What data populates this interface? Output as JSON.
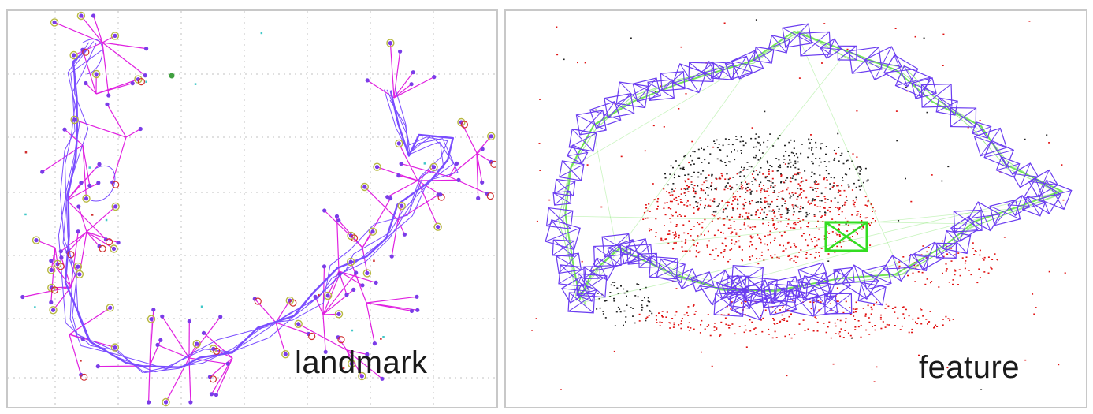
{
  "panels": {
    "left": {
      "caption": "landmark"
    },
    "right": {
      "caption": "feature"
    }
  },
  "colors": {
    "trajectory": "#7a4dff",
    "landmark_link": "#e020e0",
    "landmark_point": "#7a3ce8",
    "landmark_marker_a": "#b8b840",
    "landmark_marker_b": "#40c8c8",
    "landmark_outlier": "#d03030",
    "keyframe": "#6a3cf0",
    "covisibility_edge": "#66e04a",
    "current_frame": "#33dd22",
    "map_point_active": "#e01010",
    "map_point_old": "#222222",
    "grid": "#c0c0c0"
  }
}
